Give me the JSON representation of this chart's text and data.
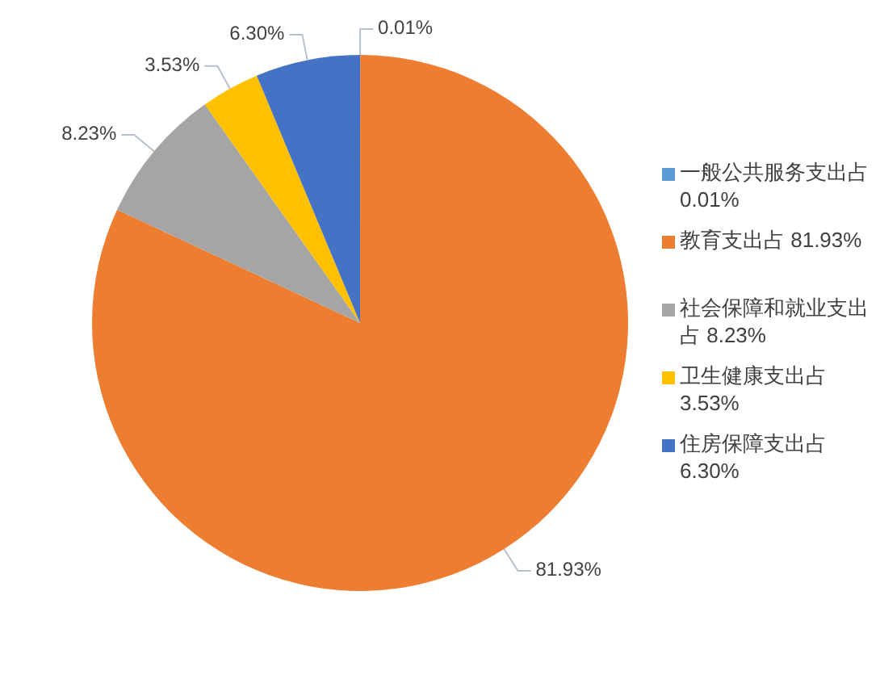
{
  "chart_data": {
    "type": "pie",
    "categories": [
      "一般公共服务支出占 0.01%",
      "教育支出占 81.93%",
      "社会保障和就业支出占 8.23%",
      "卫生健康支出占 3.53%",
      "住房保障支出占 6.30%"
    ],
    "values": [
      0.01,
      81.93,
      8.23,
      3.53,
      6.3
    ],
    "colors": [
      "#5b9bd5",
      "#ed7d31",
      "#a5a5a5",
      "#ffc000",
      "#4472c4"
    ],
    "value_labels": [
      "0.01%",
      "81.93%",
      "8.23%",
      "3.53%",
      "6.30%"
    ],
    "legend": "right"
  }
}
